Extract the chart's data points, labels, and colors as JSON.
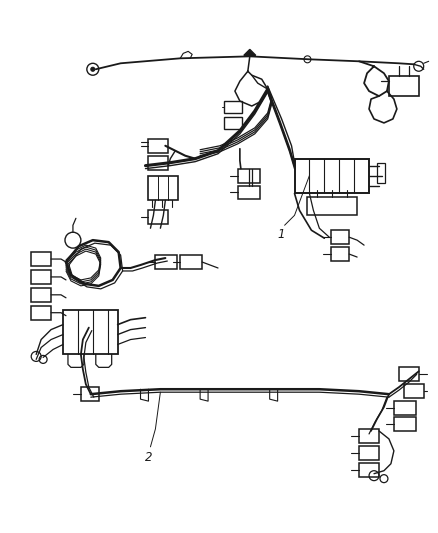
{
  "background_color": "#ffffff",
  "line_color": "#1a1a1a",
  "fig_width": 4.39,
  "fig_height": 5.33,
  "dpi": 100,
  "label_1": "1",
  "label_2": "2",
  "label_fontsize": 8.5
}
